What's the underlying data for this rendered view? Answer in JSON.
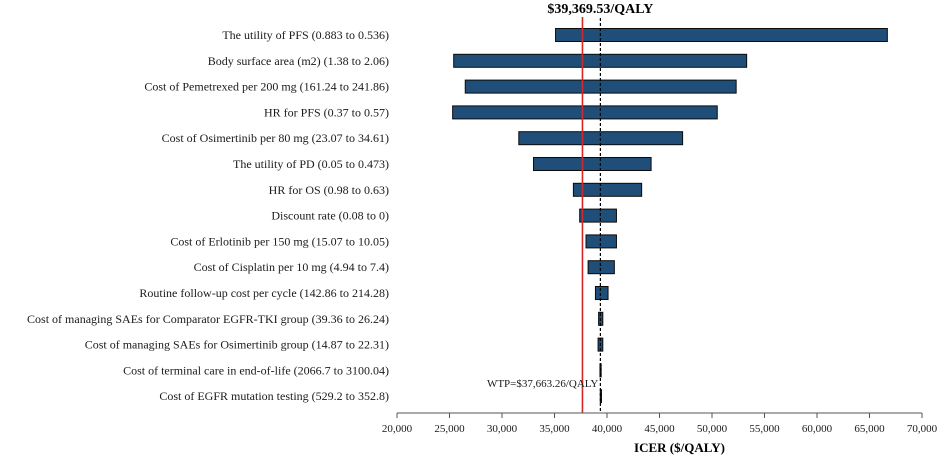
{
  "chart_data": {
    "type": "tornado",
    "title": "$39,369.53/QALY",
    "xlabel": "ICER ($/QALY)",
    "xlim": [
      20000,
      70000
    ],
    "xticks": [
      "20,000",
      "25,000",
      "30,000",
      "35,000",
      "40,000",
      "45,000",
      "50,000",
      "55,000",
      "60,000",
      "65,000",
      "70,000"
    ],
    "xtick_values": [
      20000,
      25000,
      30000,
      35000,
      40000,
      45000,
      50000,
      55000,
      60000,
      65000,
      70000
    ],
    "base_value": 39369.53,
    "wtp_value": 37663.26,
    "wtp_label": "WTP=$37,663.26/QALY",
    "bar_color": "#1f4e79",
    "wtp_color": "#d62728",
    "parameters": [
      {
        "label": "The utility of PFS (0.883 to 0.536)",
        "low": 35100,
        "high": 66700
      },
      {
        "label": "Body surface area (m2) (1.38 to 2.06)",
        "low": 25400,
        "high": 53300
      },
      {
        "label": "Cost of Pemetrexed per 200 mg (161.24 to 241.86)",
        "low": 26500,
        "high": 52300
      },
      {
        "label": "HR for PFS (0.37 to 0.57)",
        "low": 25300,
        "high": 50500
      },
      {
        "label": "Cost of Osimertinib per 80 mg (23.07 to 34.61)",
        "low": 31600,
        "high": 47200
      },
      {
        "label": "The utility of PD (0.05 to 0.473)",
        "low": 33000,
        "high": 44200
      },
      {
        "label": "HR for OS (0.98 to 0.63)",
        "low": 36800,
        "high": 43300
      },
      {
        "label": "Discount rate (0.08 to 0)",
        "low": 37400,
        "high": 40900
      },
      {
        "label": "Cost of Erlotinib per 150 mg (15.07 to 10.05)",
        "low": 38000,
        "high": 40900
      },
      {
        "label": "Cost of Cisplatin per 10 mg (4.94 to 7.4)",
        "low": 38200,
        "high": 40700
      },
      {
        "label": "Routine follow-up cost per cycle (142.86 to 214.28)",
        "low": 38900,
        "high": 40100
      },
      {
        "label": "Cost of managing SAEs for Comparator EGFR-TKI group (39.36 to 26.24)",
        "low": 39200,
        "high": 39600
      },
      {
        "label": "Cost of managing SAEs for Osimertinib group (14.87 to 22.31)",
        "low": 39150,
        "high": 39600
      },
      {
        "label": "Cost of terminal care in end-of-life (2066.7 to 3100.04)",
        "low": 39330,
        "high": 39420
      },
      {
        "label": "Cost of EGFR mutation testing (529.2 to 352.8)",
        "low": 39360,
        "high": 39380
      }
    ]
  }
}
